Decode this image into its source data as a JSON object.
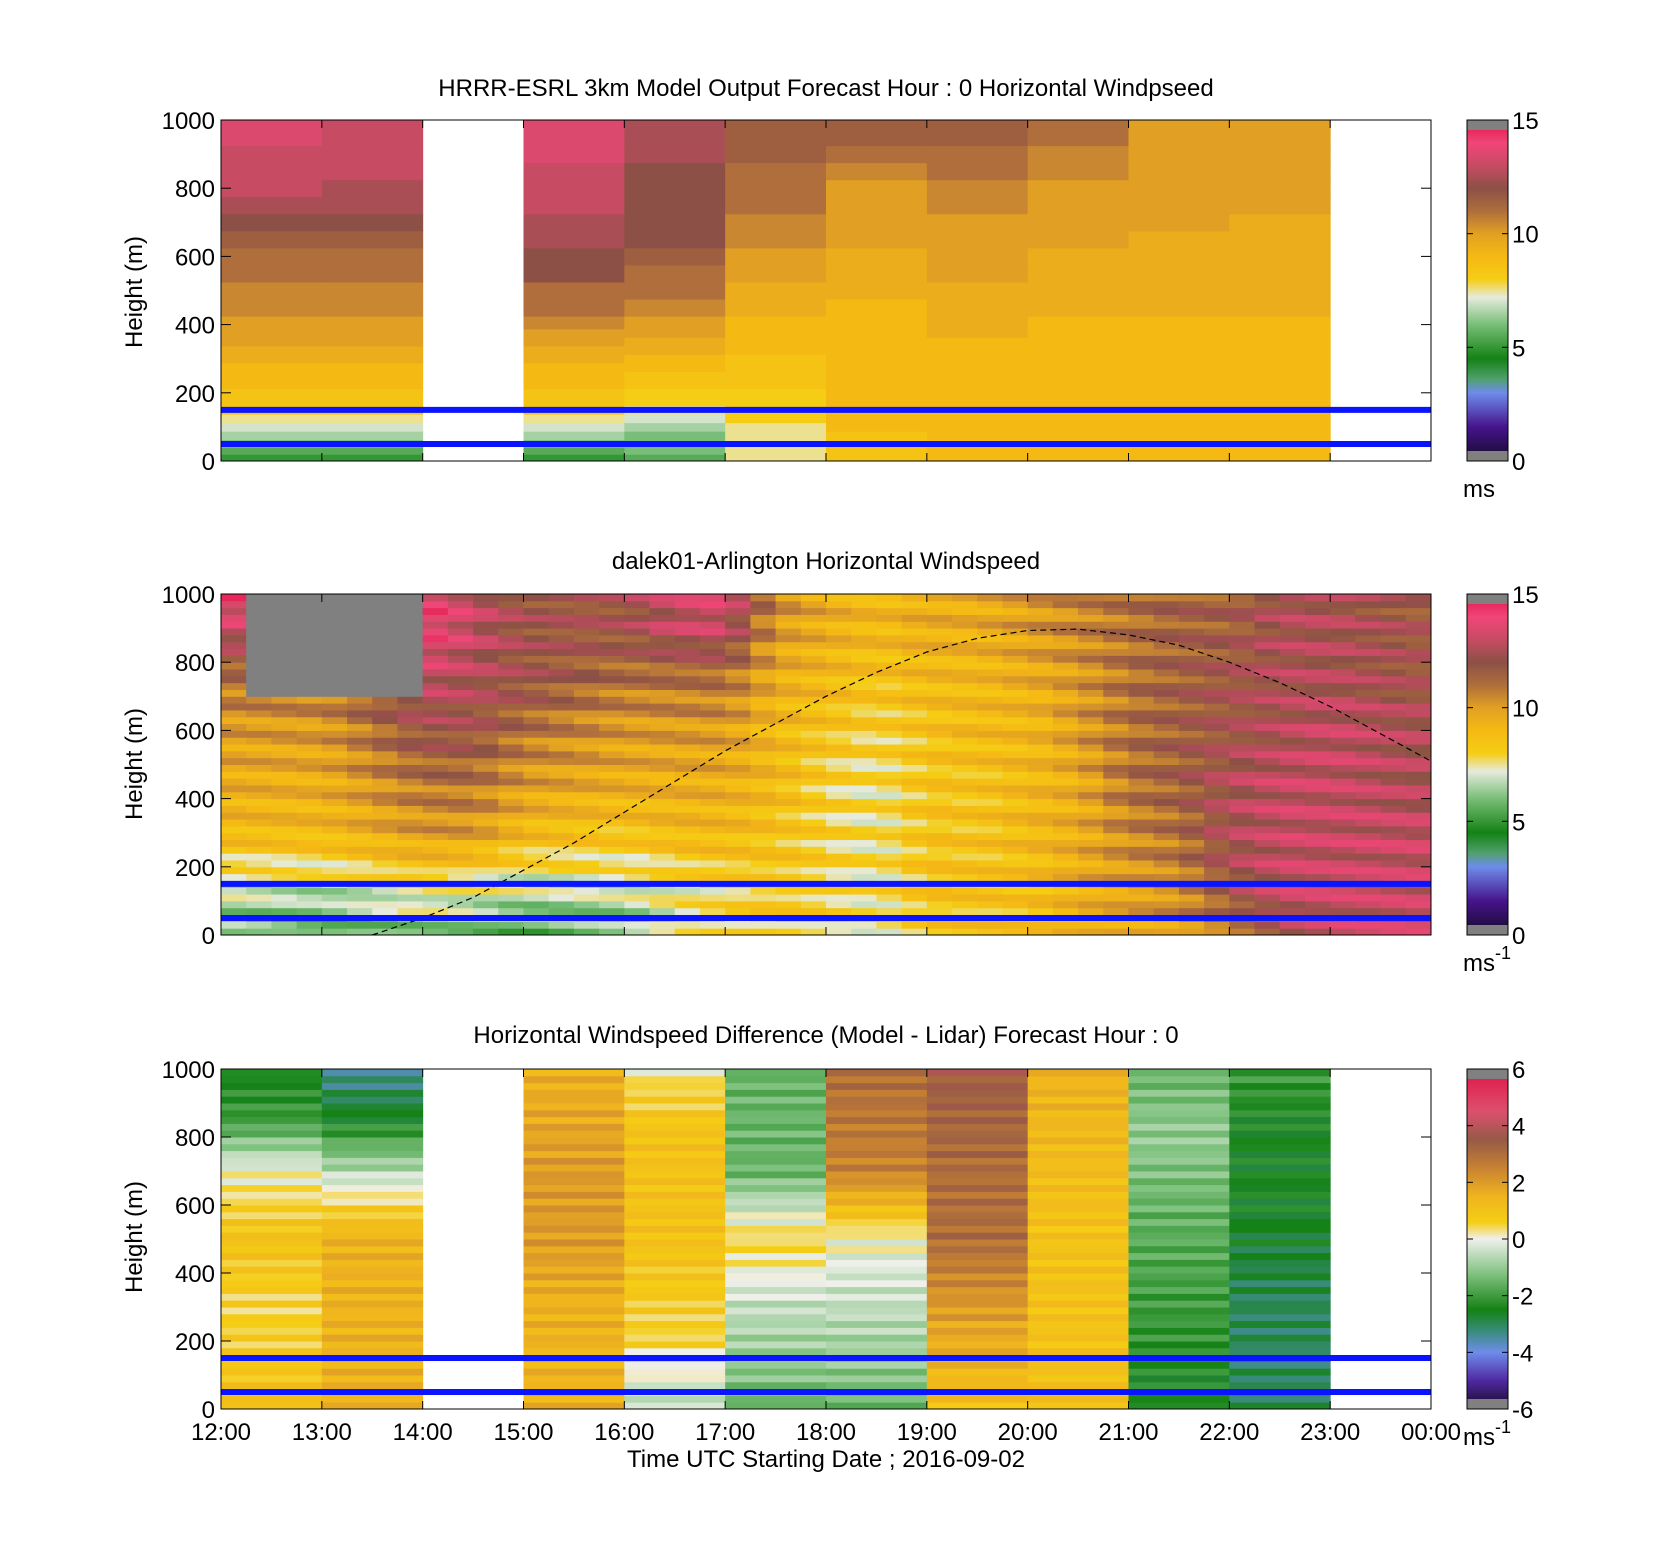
{
  "x_axis": {
    "tick_labels": [
      "12:00",
      "13:00",
      "14:00",
      "15:00",
      "16:00",
      "17:00",
      "18:00",
      "19:00",
      "20:00",
      "21:00",
      "22:00",
      "23:00",
      "00:00"
    ],
    "label": "Time UTC  Starting Date ; 2016-09-02"
  },
  "chart_data": [
    {
      "type": "heatmap",
      "title": "HRRR-ESRL 3km Model Output   Forecast Hour : 0 Horizontal Windpseed",
      "ylabel": "Height (m)",
      "ylim": [
        0,
        1000
      ],
      "y_ticks": [
        "0",
        "200",
        "400",
        "600",
        "800",
        "1000"
      ],
      "x_hours": [
        12,
        24
      ],
      "colorbar": {
        "min": 0,
        "max": 15,
        "ticks": [
          "0",
          "5",
          "10",
          "15"
        ],
        "unit_label": "ms",
        "unit_superscript": "",
        "palette": "speed"
      },
      "reference_lines_m": [
        50,
        150
      ],
      "heights_m": [
        10,
        30,
        50,
        75,
        100,
        125,
        150,
        175,
        200,
        225,
        250,
        275,
        300,
        325,
        350,
        375,
        400,
        450,
        500,
        550,
        600,
        650,
        700,
        750,
        800,
        850,
        900,
        950,
        1000
      ],
      "columns": [
        {
          "start_h": 12,
          "end_h": 13,
          "values": [
            5,
            5.5,
            6,
            6.5,
            7,
            7.5,
            8.5,
            8.5,
            8.5,
            9,
            9,
            9,
            9.5,
            9.5,
            10,
            10,
            10,
            10.5,
            10.5,
            11,
            11,
            11.5,
            12,
            12.5,
            13,
            13,
            13,
            13.5,
            13.5
          ]
        },
        {
          "start_h": 13,
          "end_h": 14,
          "values": [
            5,
            5.5,
            6,
            6.5,
            7,
            7.5,
            8.5,
            8.5,
            8.5,
            9,
            9,
            9,
            9.5,
            9.5,
            10,
            10,
            10,
            10.5,
            10.5,
            11,
            11,
            11.5,
            12,
            12.5,
            12.5,
            13,
            13,
            13,
            13
          ]
        },
        {
          "start_h": 15,
          "end_h": 16,
          "values": [
            5,
            5.5,
            6,
            6.5,
            7,
            7.5,
            8.5,
            8.5,
            8.5,
            9,
            9,
            9,
            9.5,
            9.5,
            10,
            10,
            10.5,
            11,
            11,
            12,
            12,
            12.5,
            12.5,
            13,
            13,
            13,
            13.5,
            13.5,
            13.5
          ]
        },
        {
          "start_h": 16,
          "end_h": 17,
          "values": [
            5.5,
            6,
            6,
            6,
            6.5,
            7,
            7.5,
            8,
            8,
            8.5,
            8.5,
            9,
            9,
            9.5,
            9.5,
            10,
            10,
            10.5,
            11,
            11,
            11.5,
            12,
            12,
            12,
            12,
            12,
            12.5,
            12.5,
            12.5
          ]
        },
        {
          "start_h": 17,
          "end_h": 18,
          "values": [
            7.5,
            7.5,
            7.5,
            7.5,
            7.5,
            8,
            8,
            8,
            8,
            8.5,
            8.5,
            8.5,
            8.5,
            9,
            9,
            9,
            9,
            9.5,
            9.5,
            10,
            10,
            10.5,
            10.5,
            11,
            11,
            11,
            11.5,
            11.5,
            11.5
          ]
        },
        {
          "start_h": 18,
          "end_h": 19,
          "values": [
            8.5,
            8.5,
            8.5,
            8.5,
            9,
            9,
            9,
            9,
            9,
            9,
            9,
            9,
            9,
            9,
            9,
            9,
            9,
            9,
            9.5,
            9.5,
            9.5,
            10,
            10,
            10,
            10,
            10.5,
            11,
            11.5,
            11.5
          ]
        },
        {
          "start_h": 19,
          "end_h": 20,
          "values": [
            9,
            9,
            9,
            9,
            9,
            9,
            9,
            9,
            9,
            9,
            9,
            9,
            9,
            9,
            9,
            9.5,
            9.5,
            9.5,
            9.5,
            10,
            10,
            10,
            10,
            10.5,
            10.5,
            11,
            11,
            11.5,
            11.5
          ]
        },
        {
          "start_h": 20,
          "end_h": 21,
          "values": [
            9,
            9,
            9,
            9,
            9,
            9,
            9,
            9,
            9,
            9,
            9,
            9,
            9,
            9,
            9,
            9,
            9,
            9.5,
            9.5,
            9.5,
            9.5,
            10,
            10,
            10,
            10,
            10.5,
            10.5,
            11,
            11
          ]
        },
        {
          "start_h": 21,
          "end_h": 22,
          "values": [
            9,
            9,
            9,
            9,
            9,
            9,
            9,
            9,
            9,
            9,
            9,
            9,
            9,
            9,
            9,
            9,
            9,
            9.5,
            9.5,
            9.5,
            9.5,
            9.5,
            10,
            10,
            10,
            10,
            10,
            10,
            10
          ]
        },
        {
          "start_h": 22,
          "end_h": 23,
          "values": [
            9,
            9,
            9,
            9,
            9,
            9,
            9,
            9,
            9,
            9,
            9,
            9,
            9,
            9,
            9,
            9,
            9,
            9.5,
            9.5,
            9.5,
            9.5,
            9.5,
            9.5,
            10,
            10,
            10,
            10,
            10,
            10
          ]
        }
      ]
    },
    {
      "type": "heatmap",
      "title": "dalek01-Arlington  Horizontal Windspeed",
      "ylabel": "Height (m)",
      "ylim": [
        0,
        1000
      ],
      "y_ticks": [
        "0",
        "200",
        "400",
        "600",
        "800",
        "1000"
      ],
      "x_hours": [
        12,
        24
      ],
      "colorbar": {
        "min": 0,
        "max": 15,
        "ticks": [
          "0",
          "5",
          "10",
          "15"
        ],
        "unit_label": "ms",
        "unit_superscript": "-1",
        "palette": "speed"
      },
      "reference_lines_m": [
        50,
        150
      ],
      "data_end_h": 23.8,
      "column_width_h": 0.25,
      "height_step_m": 20,
      "profile_knots": [
        {
          "h": 12.0,
          "z": [
            6,
            7,
            9,
            9.5,
            10,
            11,
            13,
            14
          ]
        },
        {
          "h": 13.0,
          "z": [
            5,
            7,
            9,
            9.5,
            10,
            11,
            13,
            14
          ]
        },
        {
          "h": 14.0,
          "z": [
            6,
            8,
            10,
            11,
            12,
            13,
            14,
            14
          ]
        },
        {
          "h": 14.5,
          "z": [
            6,
            7.5,
            10,
            11,
            12,
            12.5,
            13,
            13
          ]
        },
        {
          "h": 15.0,
          "z": [
            5.5,
            7,
            9,
            10,
            11,
            12,
            12,
            12
          ]
        },
        {
          "h": 16.0,
          "z": [
            6,
            7,
            8.5,
            9.5,
            10,
            11,
            12,
            12
          ]
        },
        {
          "h": 16.5,
          "z": [
            7,
            7.5,
            9,
            9.5,
            10,
            11,
            13,
            13
          ]
        },
        {
          "h": 17.0,
          "z": [
            7.5,
            8,
            9,
            9.5,
            10,
            11,
            13,
            13.5
          ]
        },
        {
          "h": 17.5,
          "z": [
            8,
            8.5,
            8.5,
            9,
            9,
            9.5,
            10,
            10.5
          ]
        },
        {
          "h": 18.0,
          "z": [
            8,
            8,
            8,
            8,
            8.5,
            9,
            9.5,
            9.5
          ]
        },
        {
          "h": 18.5,
          "z": [
            7.5,
            7.5,
            7.5,
            7.5,
            8,
            8.5,
            9,
            9
          ]
        },
        {
          "h": 19.0,
          "z": [
            8.5,
            8.5,
            8.5,
            8.5,
            8.5,
            9,
            9.5,
            9.5
          ]
        },
        {
          "h": 19.5,
          "z": [
            8.5,
            8.5,
            8.5,
            8.5,
            9,
            9,
            9.5,
            9.5
          ]
        },
        {
          "h": 20.0,
          "z": [
            8.5,
            8.5,
            9,
            9,
            9,
            9.5,
            10,
            10
          ]
        },
        {
          "h": 20.5,
          "z": [
            9,
            9.5,
            9.5,
            9.5,
            10,
            10,
            10.5,
            10.5
          ]
        },
        {
          "h": 21.0,
          "z": [
            9.5,
            10,
            10.5,
            11,
            11,
            11,
            11,
            11
          ]
        },
        {
          "h": 21.5,
          "z": [
            10,
            10.5,
            11,
            11.5,
            11.5,
            11.5,
            11.5,
            11.5
          ]
        },
        {
          "h": 22.0,
          "z": [
            11,
            12,
            12.5,
            12.5,
            12,
            12,
            11.5,
            11.5
          ]
        },
        {
          "h": 22.5,
          "z": [
            12.5,
            13,
            13,
            13,
            12.5,
            12.5,
            12.5,
            12.5
          ]
        },
        {
          "h": 23.0,
          "z": [
            13,
            13,
            13,
            13,
            13,
            12.5,
            12.5,
            12.5
          ]
        },
        {
          "h": 23.8,
          "z": [
            13,
            13,
            13,
            12.5,
            12.5,
            12,
            12,
            11.5
          ]
        }
      ],
      "profile_heights_m": [
        0,
        150,
        300,
        450,
        600,
        750,
        900,
        1000
      ],
      "missing_data_region": {
        "start_h": 12.3,
        "end_h": 13.9,
        "above_m": 700
      },
      "boundary_layer_curve": {
        "style": "dashed",
        "points_h_m": [
          [
            13.5,
            0
          ],
          [
            14,
            50
          ],
          [
            14.5,
            110
          ],
          [
            15,
            190
          ],
          [
            15.5,
            270
          ],
          [
            16,
            360
          ],
          [
            16.5,
            450
          ],
          [
            17,
            540
          ],
          [
            17.5,
            620
          ],
          [
            18,
            700
          ],
          [
            18.5,
            770
          ],
          [
            19,
            830
          ],
          [
            19.5,
            870
          ],
          [
            20,
            893
          ],
          [
            20.5,
            897
          ],
          [
            21,
            880
          ],
          [
            21.5,
            850
          ],
          [
            22,
            800
          ],
          [
            22.5,
            740
          ],
          [
            23,
            670
          ],
          [
            23.5,
            590
          ],
          [
            24,
            510
          ]
        ]
      }
    },
    {
      "type": "heatmap",
      "title": "Horizontal Windspeed Difference (Model - Lidar) Forecast Hour : 0",
      "ylabel": "Height (m)",
      "ylim": [
        0,
        1000
      ],
      "y_ticks": [
        "0",
        "200",
        "400",
        "600",
        "800",
        "1000"
      ],
      "x_hours": [
        12,
        24
      ],
      "colorbar": {
        "min": -6,
        "max": 6,
        "ticks": [
          "-6",
          "-4",
          "-2",
          "0",
          "2",
          "4",
          "6"
        ],
        "unit_label": "ms",
        "unit_superscript": "-1",
        "palette": "diff"
      },
      "reference_lines_m": [
        50,
        150
      ],
      "height_step_m": 20,
      "columns": [
        {
          "start_h": 12,
          "end_h": 13,
          "z": [
            [
              0,
              1
            ],
            [
              300,
              0.5
            ],
            [
              500,
              1
            ],
            [
              700,
              0
            ],
            [
              850,
              -2
            ],
            [
              1000,
              -2.5
            ]
          ]
        },
        {
          "start_h": 13,
          "end_h": 14,
          "z": [
            [
              0,
              1.5
            ],
            [
              300,
              1.5
            ],
            [
              500,
              1.5
            ],
            [
              650,
              0
            ],
            [
              850,
              -2.5
            ],
            [
              1000,
              -3.5
            ]
          ]
        },
        {
          "start_h": 15,
          "end_h": 16,
          "z": [
            [
              0,
              1.5
            ],
            [
              300,
              1.5
            ],
            [
              500,
              2
            ],
            [
              700,
              2
            ],
            [
              1000,
              1.5
            ]
          ]
        },
        {
          "start_h": 16,
          "end_h": 17,
          "z": [
            [
              0,
              -0.5
            ],
            [
              200,
              0.5
            ],
            [
              500,
              1
            ],
            [
              800,
              1
            ],
            [
              950,
              0.5
            ],
            [
              1000,
              0
            ]
          ]
        },
        {
          "start_h": 17,
          "end_h": 18,
          "z": [
            [
              0,
              -1.5
            ],
            [
              300,
              -0.5
            ],
            [
              500,
              0.5
            ],
            [
              700,
              -1.5
            ],
            [
              1000,
              -1.5
            ]
          ]
        },
        {
          "start_h": 18,
          "end_h": 19,
          "z": [
            [
              0,
              -1.5
            ],
            [
              300,
              -0.5
            ],
            [
              500,
              0
            ],
            [
              700,
              2.5
            ],
            [
              1000,
              3
            ]
          ]
        },
        {
          "start_h": 19,
          "end_h": 20,
          "z": [
            [
              0,
              1
            ],
            [
              300,
              2
            ],
            [
              500,
              3
            ],
            [
              700,
              3
            ],
            [
              1000,
              3.5
            ]
          ]
        },
        {
          "start_h": 20,
          "end_h": 21,
          "z": [
            [
              0,
              1
            ],
            [
              500,
              1
            ],
            [
              1000,
              1.5
            ]
          ]
        },
        {
          "start_h": 21,
          "end_h": 22,
          "z": [
            [
              0,
              -2.5
            ],
            [
              300,
              -2
            ],
            [
              600,
              -1.5
            ],
            [
              800,
              -1
            ],
            [
              1000,
              -1.5
            ]
          ]
        },
        {
          "start_h": 22,
          "end_h": 23,
          "z": [
            [
              0,
              -3
            ],
            [
              300,
              -3
            ],
            [
              600,
              -2.5
            ],
            [
              800,
              -2.5
            ],
            [
              1000,
              -2
            ]
          ]
        }
      ]
    }
  ]
}
